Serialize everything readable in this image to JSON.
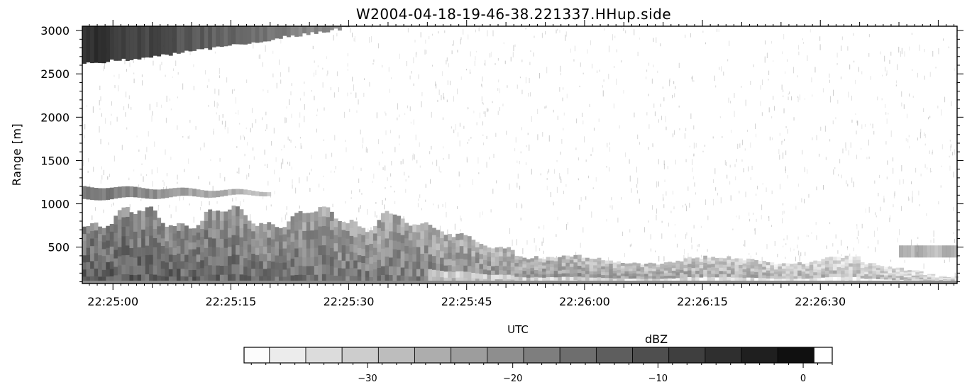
{
  "chart_data": {
    "type": "heatmap",
    "title": "W2004-04-18-19-46-38.221337.HHup.side",
    "xlabel": "UTC",
    "ylabel": "Range [m]",
    "x_ticks": [
      "22:25:00",
      "22:25:15",
      "22:25:30",
      "22:25:45",
      "22:26:00",
      "22:26:15",
      "22:26:30"
    ],
    "x_tick_seconds": [
      0,
      15,
      30,
      45,
      60,
      75,
      90
    ],
    "xlim_seconds": [
      -3.9,
      107.4
    ],
    "y_ticks": [
      500,
      1000,
      1500,
      2000,
      2500,
      3000
    ],
    "ylim": [
      80,
      3050
    ],
    "colorbar": {
      "label": "dBZ",
      "ticks": [
        -30,
        -20,
        -10,
        0
      ],
      "range": [
        -38.5,
        2
      ],
      "levels": [
        -38,
        -35.5,
        -33,
        -30.5,
        -28,
        -25.5,
        -23,
        -20.5,
        -18,
        -15.5,
        -13,
        -10.5,
        -8,
        -5.5,
        -3,
        -0.5
      ],
      "colormap": "greyscale, white (low) to black (high)"
    },
    "features": [
      {
        "name": "upper echo layer",
        "x_range_s": [
          -3.9,
          30
        ],
        "range_m": [
          2600,
          3050
        ],
        "dbz": -1
      },
      {
        "name": "thin layer near 1100 m",
        "x_range_s": [
          -3.9,
          20
        ],
        "range_m": [
          1050,
          1200
        ],
        "dbz": -10
      },
      {
        "name": "lower echo layer",
        "x_range_s": [
          -3.9,
          107.4
        ],
        "range_m": [
          80,
          950
        ],
        "dbz": -12
      }
    ]
  }
}
